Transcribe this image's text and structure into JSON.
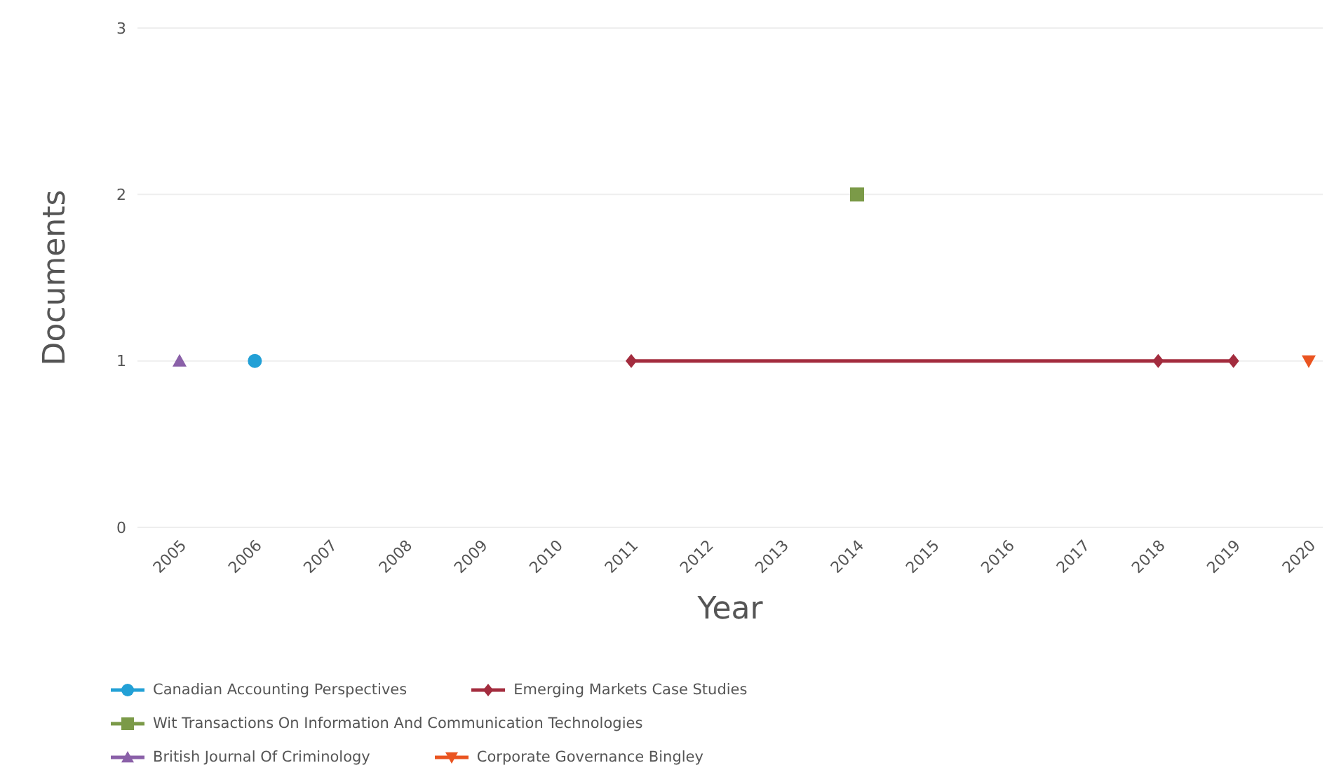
{
  "chart_data": {
    "type": "line",
    "xlabel": "Year",
    "ylabel": "Documents",
    "categories": [
      "2005",
      "2006",
      "2007",
      "2008",
      "2009",
      "2010",
      "2011",
      "2012",
      "2013",
      "2014",
      "2015",
      "2016",
      "2017",
      "2018",
      "2019",
      "2020"
    ],
    "series": [
      {
        "name": "Canadian Accounting Perspectives",
        "color": "#22a0d6",
        "marker": "circle",
        "values": [
          null,
          1,
          null,
          null,
          null,
          null,
          null,
          null,
          null,
          null,
          null,
          null,
          null,
          null,
          null,
          null
        ]
      },
      {
        "name": "Emerging Markets Case Studies",
        "color": "#a32c3e",
        "marker": "diamond",
        "values": [
          null,
          null,
          null,
          null,
          null,
          null,
          1,
          null,
          null,
          null,
          null,
          null,
          null,
          1,
          1,
          null
        ]
      },
      {
        "name": "Wit Transactions On Information And Communication Technologies",
        "color": "#7b9a48",
        "marker": "square",
        "values": [
          null,
          null,
          null,
          null,
          null,
          null,
          null,
          null,
          null,
          2,
          null,
          null,
          null,
          null,
          null,
          null
        ]
      },
      {
        "name": "British Journal Of Criminology",
        "color": "#8a60a8",
        "marker": "triangle",
        "values": [
          1,
          null,
          null,
          null,
          null,
          null,
          null,
          null,
          null,
          null,
          null,
          null,
          null,
          null,
          null,
          null
        ]
      },
      {
        "name": "Corporate Governance Bingley",
        "color": "#ea5420",
        "marker": "triangle-down",
        "values": [
          null,
          null,
          null,
          null,
          null,
          null,
          null,
          null,
          null,
          null,
          null,
          null,
          null,
          null,
          null,
          1
        ]
      }
    ],
    "ylim": [
      0,
      3
    ],
    "yticks": [
      0,
      1,
      2,
      3
    ],
    "grid": "y",
    "legend": "bottom"
  }
}
